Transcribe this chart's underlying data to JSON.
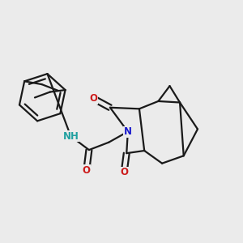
{
  "bg_color": "#ebebeb",
  "bond_color": "#1a1a1a",
  "bond_width": 1.6,
  "atom_colors": {
    "N": "#1a1acc",
    "O": "#cc1a1a",
    "NH": "#20a0a0",
    "C": "#1a1a1a"
  },
  "font_size_atom": 8.5,
  "font_size_H": 8.0
}
